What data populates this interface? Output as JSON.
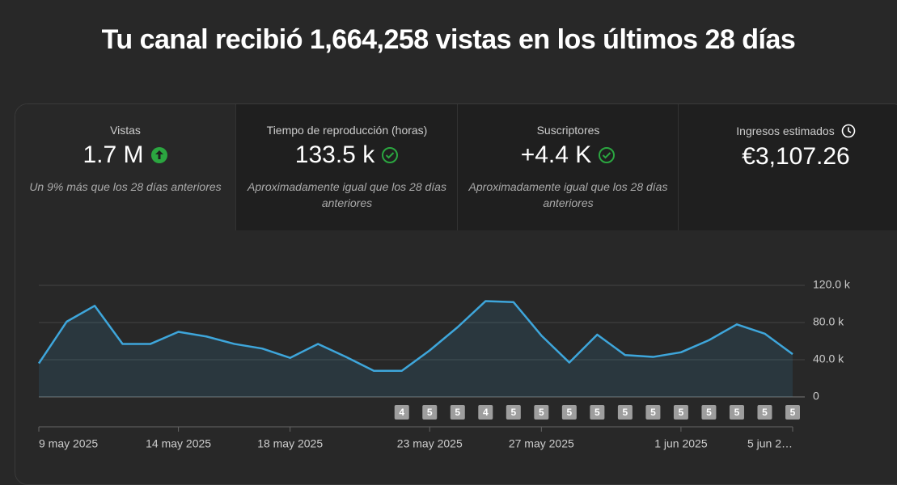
{
  "header": {
    "title": "Tu canal recibió 1,664,258 vistas en los últimos 28 días"
  },
  "cards": [
    {
      "label": "Vistas",
      "value": "1.7 M",
      "note": "Un 9% más que los 28 días anteriores",
      "icon": "up"
    },
    {
      "label": "Tiempo de reproducción (horas)",
      "value": "133.5 k",
      "note": "Aproximadamente igual que los 28 días anteriores",
      "icon": "check"
    },
    {
      "label": "Suscriptores",
      "value": "+4.4 K",
      "note": "Aproximadamente igual que los 28 días anteriores",
      "icon": "check"
    },
    {
      "label": "Ingresos estimados",
      "value": "€3,107.26",
      "icon": "clock"
    }
  ],
  "chart_data": {
    "type": "area",
    "categories": [
      "9 may 2025",
      null,
      null,
      null,
      null,
      "14 may 2025",
      null,
      null,
      null,
      "18 may 2025",
      null,
      null,
      null,
      null,
      "23 may 2025",
      null,
      null,
      null,
      "27 may 2025",
      null,
      null,
      null,
      null,
      "1 jun 2025",
      null,
      null,
      null,
      "5 jun 2…"
    ],
    "values": [
      36000,
      81000,
      98000,
      57000,
      57000,
      70000,
      65000,
      57000,
      52000,
      42000,
      57000,
      43000,
      28000,
      28000,
      50000,
      75000,
      103000,
      102000,
      66000,
      37000,
      67000,
      45000,
      43000,
      48000,
      61000,
      78000,
      68000,
      46000
    ],
    "markers": [
      null,
      null,
      null,
      null,
      null,
      null,
      null,
      null,
      null,
      null,
      null,
      null,
      null,
      4,
      5,
      5,
      4,
      5,
      5,
      5,
      5,
      5,
      5,
      5,
      5,
      5,
      5,
      5
    ],
    "color": "#3ea6db",
    "ylim": [
      0,
      120000
    ],
    "yticks": [
      0,
      {
        "value": 40000,
        "label": "40.0 k"
      },
      {
        "value": 80000,
        "label": "80.0 k"
      },
      {
        "value": 120000,
        "label": "120.0 k"
      }
    ],
    "grid": true
  }
}
